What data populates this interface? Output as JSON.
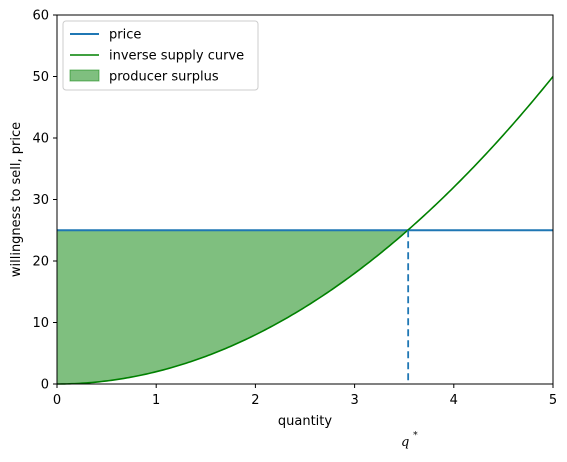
{
  "chart_data": {
    "type": "line",
    "xlabel": "quantity",
    "ylabel": "willingness to sell, price",
    "xlim": [
      0,
      5
    ],
    "ylim": [
      0,
      60
    ],
    "xticks": [
      "0",
      "1",
      "2",
      "3",
      "4",
      "5"
    ],
    "yticks": [
      "0",
      "10",
      "20",
      "30",
      "40",
      "50",
      "60"
    ],
    "grid": false,
    "legend_position": "top-left",
    "series": [
      {
        "name": "price",
        "kind": "horizontal-line",
        "y": 25,
        "color": "#1f77b4"
      },
      {
        "name": "inverse supply curve",
        "kind": "curve",
        "formula": "2*q^2",
        "color": "#008000",
        "x": [
          0,
          0.5,
          1,
          1.5,
          2,
          2.5,
          3,
          3.5,
          4,
          4.5,
          5
        ],
        "y": [
          0,
          0.5,
          2,
          4.5,
          8,
          12.5,
          18,
          24.5,
          32,
          40.5,
          50
        ]
      },
      {
        "name": "producer surplus",
        "kind": "fill-between",
        "from_x": 0,
        "to_x": 3.54,
        "color": "#008000",
        "opacity": 0.5
      }
    ],
    "equilibrium": {
      "q": 3.54,
      "price": 25,
      "label": "q",
      "label_sup": "*"
    }
  }
}
